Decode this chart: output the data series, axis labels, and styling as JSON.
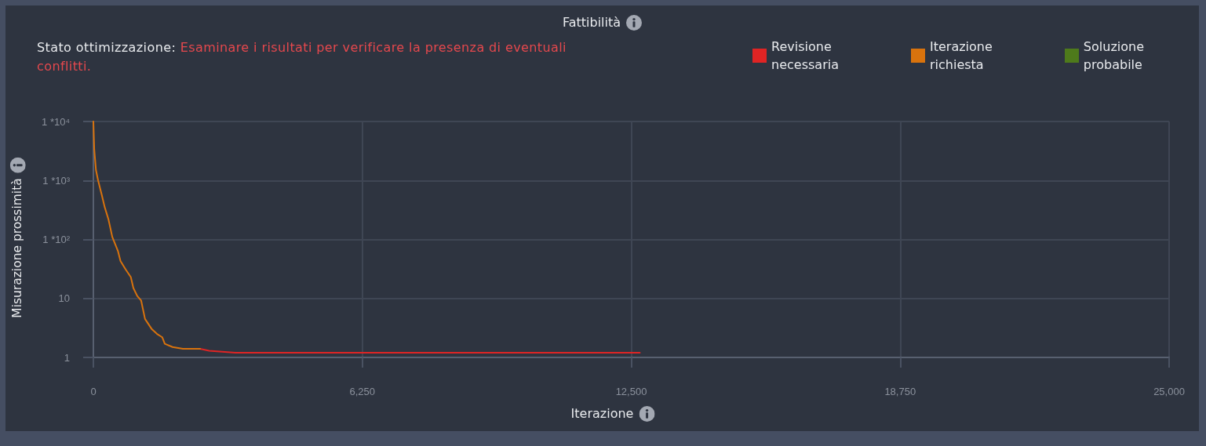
{
  "chart_data": {
    "type": "line",
    "title": "Fattibilità",
    "annotations": [
      "Stato ottimizzazione:",
      "Esaminare i risultati per verificare la presenza di eventuali conflitti."
    ],
    "xlabel": "Iterazione",
    "ylabel": "Misurazione prossimità",
    "series": [
      {
        "name": "Revisione necessaria",
        "color": "#e02424",
        "x": [
          2480,
          2690,
          3300,
          5120,
          8000,
          12700
        ],
        "values": [
          1.4,
          1.3,
          1.2,
          1.2,
          1.2,
          1.2
        ]
      },
      {
        "name": "Iterazione richiesta",
        "color": "#d9730d",
        "x": [
          0,
          20,
          60,
          110,
          200,
          260,
          350,
          440,
          570,
          630,
          750,
          870,
          930,
          1020,
          1110,
          1200,
          1360,
          1480,
          1600,
          1660,
          1840,
          2080,
          2330,
          2480
        ],
        "values": [
          10000,
          3400,
          1500,
          1000,
          550,
          360,
          220,
          110,
          64,
          43,
          31,
          23,
          15,
          11,
          9.2,
          4.5,
          3.0,
          2.5,
          2.2,
          1.7,
          1.5,
          1.4,
          1.4,
          1.4
        ]
      },
      {
        "name": "Soluzione probabile",
        "color": "#4e7a1b"
      }
    ],
    "xlim": [
      0,
      25000
    ],
    "xticks": [
      0,
      {
        "value": 6250,
        "label": "6,250"
      },
      {
        "value": 12500,
        "label": "12,500"
      },
      {
        "value": 18750,
        "label": "18,750"
      },
      {
        "value": 25000,
        "label": "25,000"
      }
    ],
    "ylim": [
      1,
      10000
    ],
    "yticks": [
      1,
      10,
      {
        "value": 100,
        "label": "1 *10²"
      },
      {
        "value": 1000,
        "label": "1 *10³"
      },
      {
        "value": 10000,
        "label": "1 *10⁴"
      }
    ],
    "log": "y",
    "grid": true,
    "legend": "top right"
  }
}
